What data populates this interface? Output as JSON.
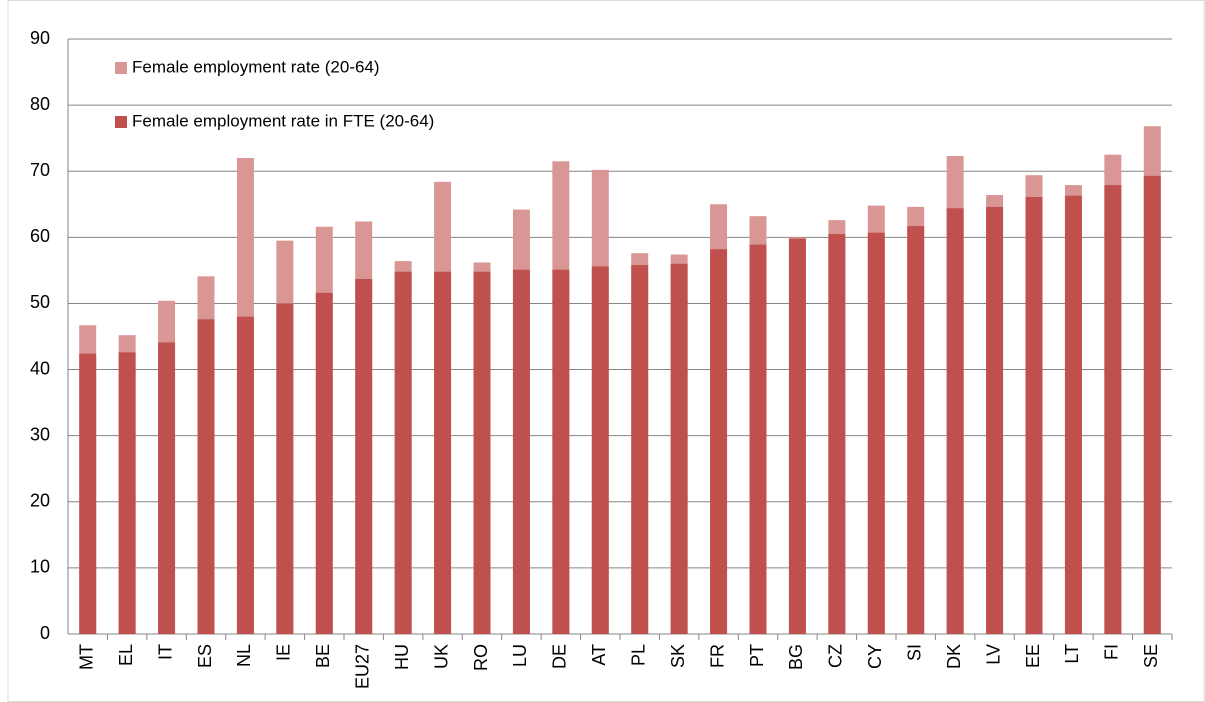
{
  "chart_data": {
    "type": "bar",
    "overlap": true,
    "categories": [
      "MT",
      "EL",
      "IT",
      "ES",
      "NL",
      "IE",
      "BE",
      "EU27",
      "HU",
      "UK",
      "RO",
      "LU",
      "DE",
      "AT",
      "PL",
      "SK",
      "FR",
      "PT",
      "BG",
      "CZ",
      "CY",
      "SI",
      "DK",
      "LV",
      "EE",
      "LT",
      "FI",
      "SE"
    ],
    "series": [
      {
        "name": "Female employment rate (20-64)",
        "color": "#d99694",
        "values": [
          46.7,
          45.2,
          50.4,
          54.1,
          72.0,
          59.5,
          61.6,
          62.4,
          56.4,
          68.4,
          56.2,
          64.2,
          71.5,
          70.2,
          57.6,
          57.4,
          65.0,
          63.2,
          60.0,
          62.6,
          64.8,
          64.6,
          72.3,
          66.4,
          69.4,
          67.9,
          72.5,
          76.8
        ]
      },
      {
        "name": "Female employment rate in FTE (20-64)",
        "color": "#c0504d",
        "values": [
          42.4,
          42.6,
          44.1,
          47.6,
          48.0,
          50.0,
          51.6,
          53.7,
          54.8,
          54.8,
          54.8,
          55.1,
          55.1,
          55.6,
          55.8,
          56.0,
          58.2,
          58.9,
          59.8,
          60.5,
          60.7,
          61.7,
          64.4,
          64.6,
          66.1,
          66.3,
          67.9,
          69.3
        ]
      }
    ],
    "ylim": [
      0,
      90
    ],
    "yticks": [
      0,
      10,
      20,
      30,
      40,
      50,
      60,
      70,
      80,
      90
    ],
    "grid": true,
    "legend": "top-left"
  }
}
